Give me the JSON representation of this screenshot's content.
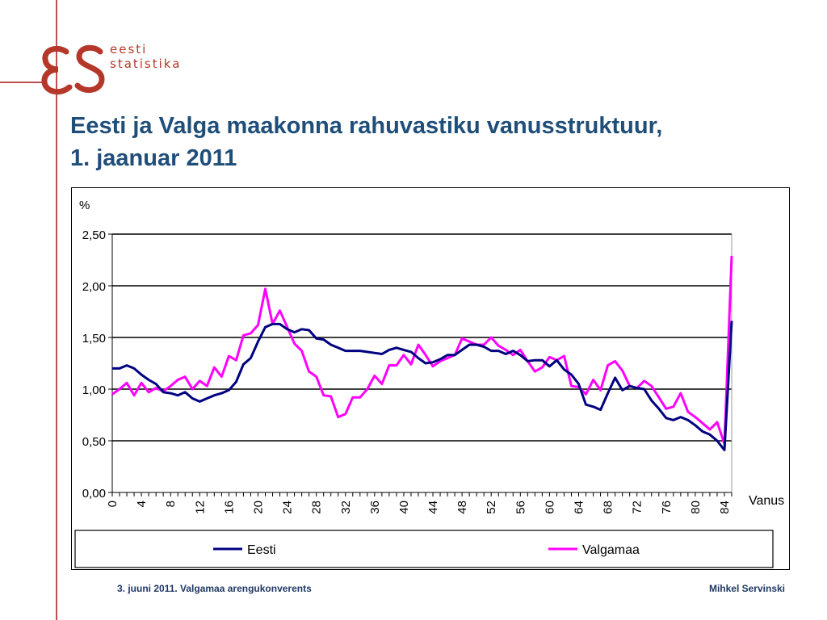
{
  "logo": {
    "line1": "eesti",
    "line2": "statistika",
    "monogram": "εS"
  },
  "title": {
    "line1": "Eesti ja Valga maakonna rahuvastiku vanusstruktuur,",
    "line2": "1. jaanuar 2011"
  },
  "footer": {
    "left": "3. juuni 2011. Valgamaa arengukonverents",
    "right": "Mihkel Servinski"
  },
  "chart_data": {
    "type": "line",
    "ylabel": "%",
    "xlabel": "Vanus",
    "ylim": [
      0,
      2.5
    ],
    "xlim": [
      0,
      85
    ],
    "yticks": [
      "0,00",
      "0,50",
      "1,00",
      "1,50",
      "2,00",
      "2,50"
    ],
    "xticks": [
      0,
      4,
      8,
      12,
      16,
      20,
      24,
      28,
      32,
      36,
      40,
      44,
      48,
      52,
      56,
      60,
      64,
      68,
      72,
      76,
      80,
      84
    ],
    "grid": "horizontal",
    "legend_position": "bottom",
    "series": [
      {
        "name": "Eesti",
        "color": "#000080",
        "values": [
          1.2,
          1.2,
          1.23,
          1.2,
          1.14,
          1.09,
          1.05,
          0.97,
          0.96,
          0.94,
          0.97,
          0.91,
          0.88,
          0.91,
          0.94,
          0.96,
          0.99,
          1.07,
          1.24,
          1.3,
          1.46,
          1.6,
          1.63,
          1.63,
          1.58,
          1.55,
          1.58,
          1.57,
          1.49,
          1.48,
          1.43,
          1.4,
          1.37,
          1.37,
          1.37,
          1.36,
          1.35,
          1.34,
          1.38,
          1.4,
          1.38,
          1.36,
          1.3,
          1.25,
          1.26,
          1.29,
          1.33,
          1.33,
          1.38,
          1.43,
          1.43,
          1.41,
          1.37,
          1.37,
          1.34,
          1.37,
          1.33,
          1.27,
          1.28,
          1.28,
          1.22,
          1.28,
          1.19,
          1.14,
          1.05,
          0.85,
          0.83,
          0.8,
          0.96,
          1.11,
          0.99,
          1.03,
          1.01,
          1.0,
          0.89,
          0.81,
          0.72,
          0.7,
          0.73,
          0.7,
          0.65,
          0.59,
          0.56,
          0.5,
          0.41,
          1.66
        ]
      },
      {
        "name": "Valgamaa",
        "color": "#ff00ff",
        "values": [
          0.95,
          1.0,
          1.06,
          0.94,
          1.06,
          0.97,
          1.01,
          0.98,
          1.03,
          1.09,
          1.12,
          1.0,
          1.08,
          1.03,
          1.21,
          1.12,
          1.32,
          1.28,
          1.52,
          1.54,
          1.62,
          1.97,
          1.63,
          1.76,
          1.6,
          1.44,
          1.37,
          1.17,
          1.12,
          0.94,
          0.93,
          0.73,
          0.76,
          0.92,
          0.92,
          1.0,
          1.13,
          1.05,
          1.23,
          1.23,
          1.33,
          1.24,
          1.43,
          1.33,
          1.22,
          1.27,
          1.3,
          1.33,
          1.49,
          1.46,
          1.43,
          1.43,
          1.5,
          1.42,
          1.38,
          1.33,
          1.38,
          1.27,
          1.17,
          1.21,
          1.31,
          1.28,
          1.32,
          1.03,
          1.02,
          0.95,
          1.09,
          0.99,
          1.23,
          1.27,
          1.18,
          1.03,
          1.01,
          1.08,
          1.03,
          0.92,
          0.81,
          0.83,
          0.96,
          0.78,
          0.73,
          0.67,
          0.61,
          0.68,
          0.47,
          2.29
        ]
      }
    ]
  }
}
